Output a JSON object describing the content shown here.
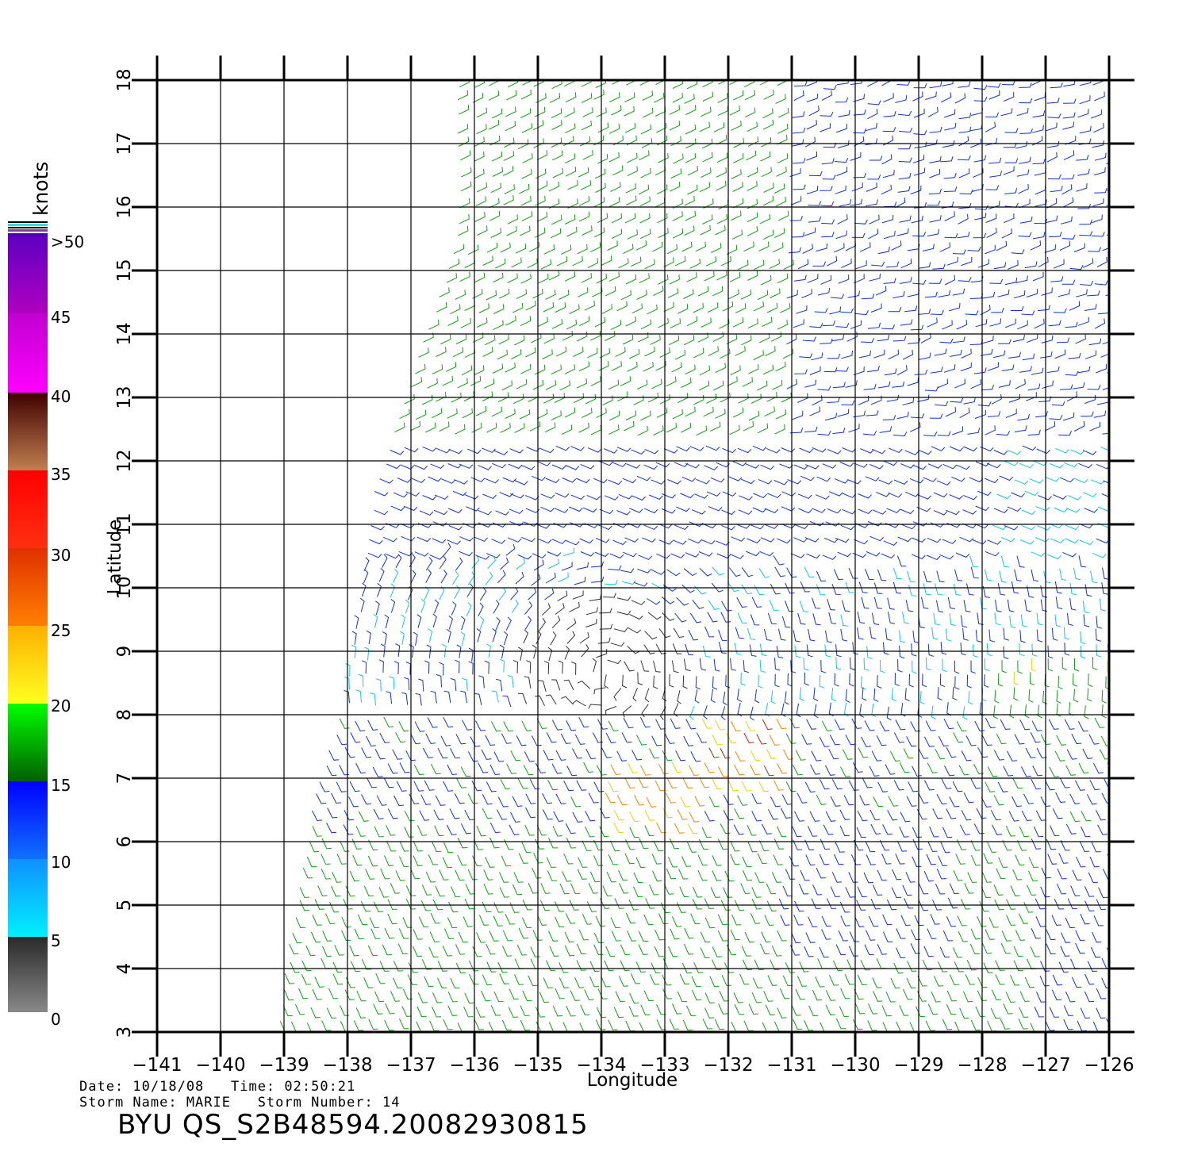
{
  "map": {
    "lon_ticks": [
      "-141",
      "-140",
      "-139",
      "-138",
      "-137",
      "-136",
      "-135",
      "-134",
      "-133",
      "-132",
      "-131",
      "-130",
      "-129",
      "-128",
      "-127",
      "-126"
    ],
    "lat_ticks": [
      "3",
      "4",
      "5",
      "6",
      "7",
      "8",
      "9",
      "10",
      "11",
      "12",
      "13",
      "14",
      "15",
      "16",
      "17",
      "18"
    ],
    "xlabel": "Longitude",
    "ylabel": "Latitude",
    "lon_range": [
      -141,
      -126
    ],
    "lat_range": [
      3,
      18
    ]
  },
  "legend": {
    "unit": "knots",
    "labels": [
      ">50",
      "45",
      "40",
      "35",
      "30",
      "25",
      "20",
      "15",
      "10",
      "5",
      "0"
    ]
  },
  "meta": {
    "line1": "Date: 10/18/08   Time: 02:50:21",
    "line2": "Storm Name: MARIE   Storm Number: 14",
    "title": "BYU QS_S2B48594.20082930815"
  }
}
